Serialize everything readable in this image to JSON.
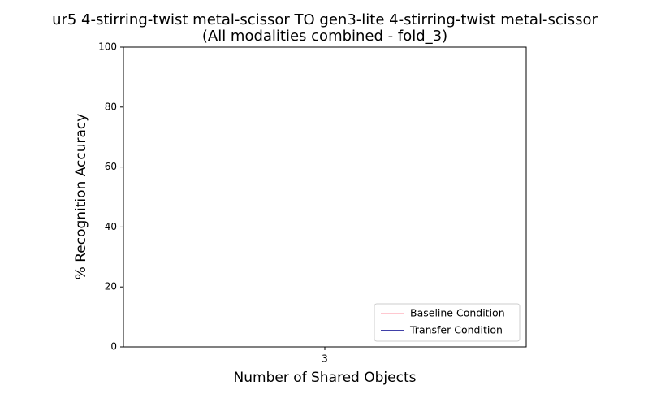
{
  "chart_data": {
    "type": "line",
    "title": [
      "ur5 4-stirring-twist metal-scissor TO gen3-lite 4-stirring-twist metal-scissor",
      "(All modalities combined - fold_3)"
    ],
    "x_label": "Number of Shared Objects",
    "y_label": "% Recognition Accuracy",
    "categories": [
      "3"
    ],
    "series": [
      {
        "name": "Baseline Condition",
        "color": "#ffb6c1",
        "values": [
          null
        ]
      },
      {
        "name": "Transfer Condition",
        "color": "#00008b",
        "values": [
          null
        ]
      }
    ],
    "ylim": [
      0,
      100
    ],
    "yticks": [
      0,
      20,
      40,
      60,
      80,
      100
    ],
    "legend": "lower right"
  }
}
